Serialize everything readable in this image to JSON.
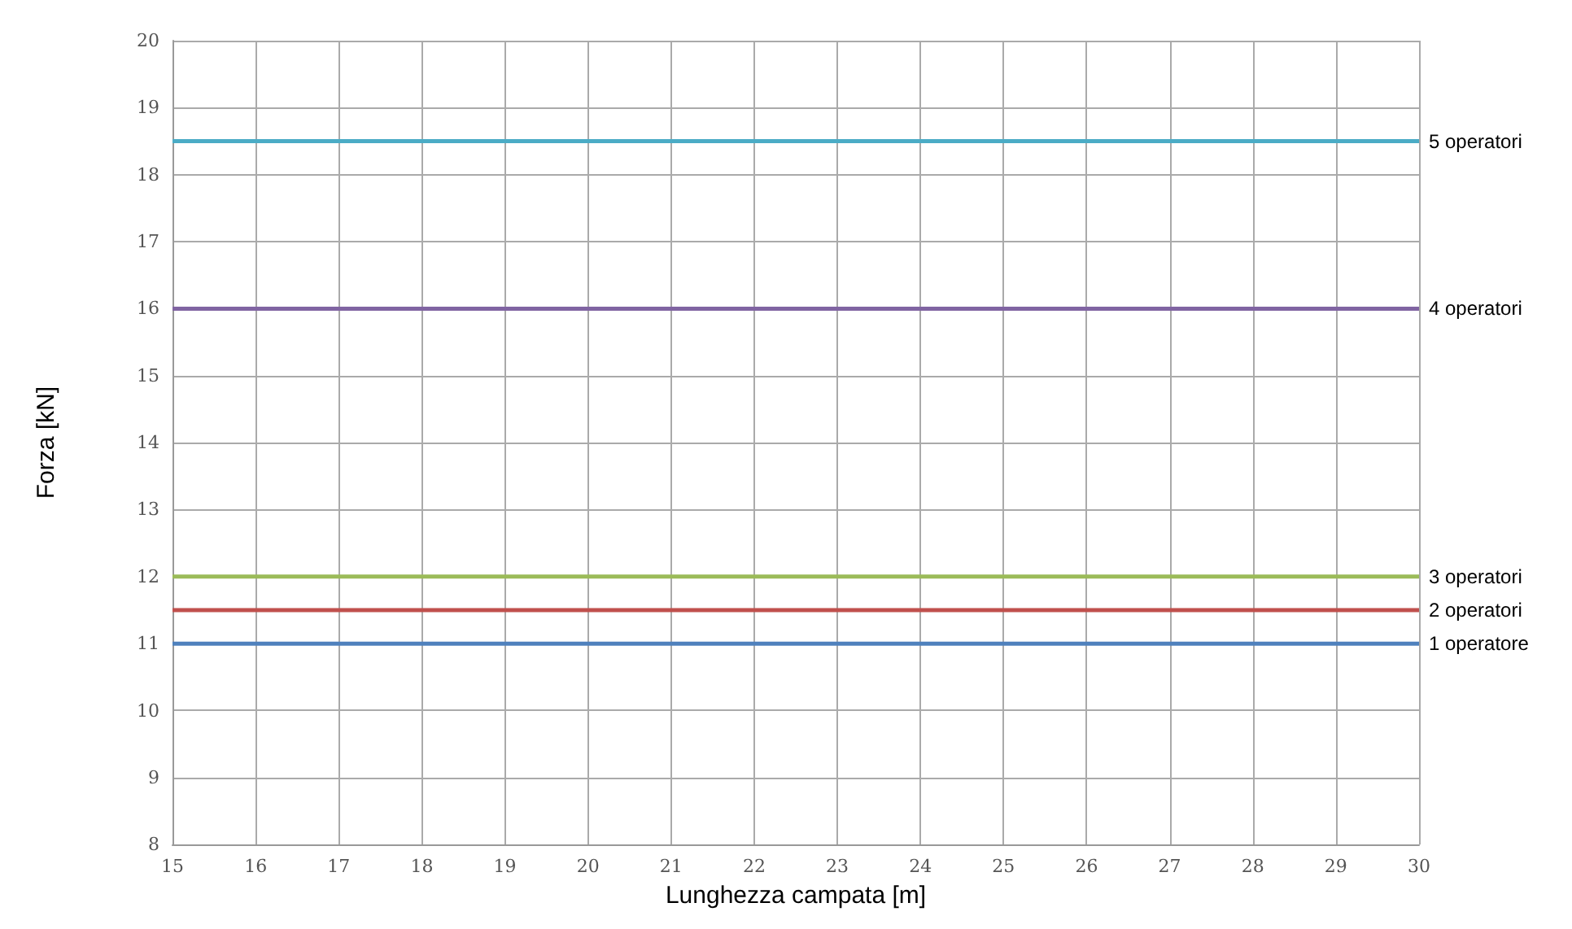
{
  "chart_data": {
    "type": "line",
    "xlabel": "Lunghezza campata [m]",
    "ylabel": "Forza [kN]",
    "x": [
      15,
      30
    ],
    "series": [
      {
        "name": "5 operatori",
        "color": "#4bacc6",
        "values": [
          18.5,
          18.5
        ]
      },
      {
        "name": "4 operatori",
        "color": "#8064a2",
        "values": [
          16,
          16
        ]
      },
      {
        "name": "3 operatori",
        "color": "#9bbb59",
        "values": [
          12,
          12
        ]
      },
      {
        "name": "2 operatori",
        "color": "#c0504d",
        "values": [
          11.5,
          11.5
        ]
      },
      {
        "name": "1 operatore",
        "color": "#4f81bd",
        "values": [
          11,
          11
        ]
      }
    ],
    "xlim": [
      15,
      30
    ],
    "xticks": [
      15,
      16,
      17,
      18,
      19,
      20,
      21,
      22,
      23,
      24,
      25,
      26,
      27,
      28,
      29,
      30
    ],
    "ylim": [
      8,
      20
    ],
    "yticks": [
      8,
      9,
      10,
      11,
      12,
      13,
      14,
      15,
      16,
      17,
      18,
      19,
      20
    ],
    "grid": true,
    "marker": "none",
    "line_style": "solid",
    "legend": false
  }
}
